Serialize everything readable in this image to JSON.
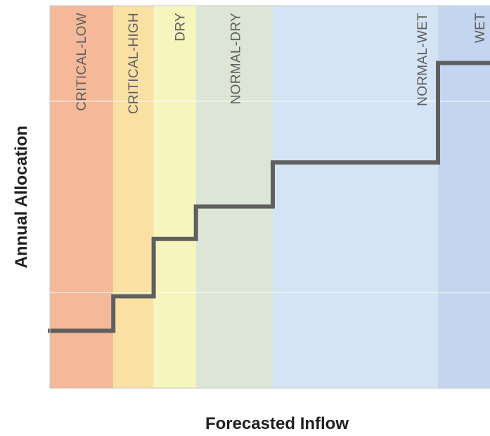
{
  "chart_data": {
    "type": "step",
    "xlabel": "Forecasted Inflow",
    "ylabel": "Annual Allocation",
    "xlim": [
      0,
      100
    ],
    "ylim": [
      0,
      100
    ],
    "grid": "horizontal",
    "zones": [
      {
        "label": "CRITICAL-LOW",
        "x_start": 0,
        "x_end": 16.5,
        "color": "#f5b99a"
      },
      {
        "label": "CRITICAL-HIGH",
        "x_start": 16.5,
        "x_end": 27,
        "color": "#fbe0a4"
      },
      {
        "label": "DRY",
        "x_start": 27,
        "x_end": 38,
        "color": "#f6f5bd"
      },
      {
        "label": "NORMAL-DRY",
        "x_start": 38,
        "x_end": 58,
        "color": "#dde6d6"
      },
      {
        "label": "NORMAL-WET",
        "x_start": 58,
        "x_end": 101,
        "color": "#d5e4f5"
      },
      {
        "label": "WET",
        "x_start": 101,
        "x_end": 200,
        "color": "#c4d6ef"
      }
    ],
    "gridlines_y": [
      25,
      75
    ],
    "series": [
      {
        "points": [
          [
            0,
            15
          ],
          [
            16.5,
            15
          ],
          [
            16.5,
            24
          ],
          [
            27,
            24
          ],
          [
            27,
            39
          ],
          [
            38,
            39
          ],
          [
            38,
            47.5
          ],
          [
            58,
            47.5
          ],
          [
            58,
            59
          ],
          [
            101,
            59
          ],
          [
            101,
            85
          ],
          [
            200,
            85
          ]
        ],
        "color": "#5f5f5f"
      }
    ]
  }
}
